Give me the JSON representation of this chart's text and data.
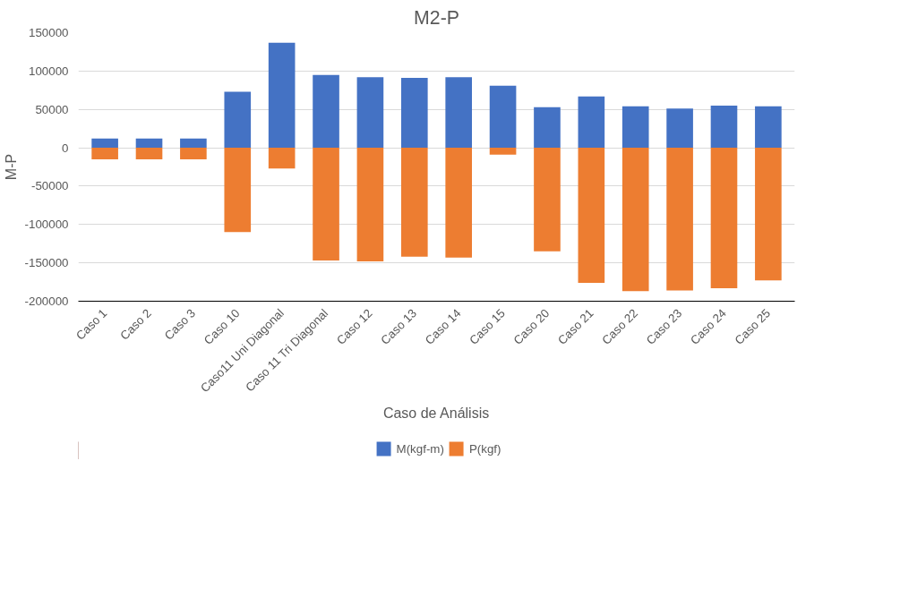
{
  "chart_data": {
    "type": "bar",
    "title": "M2-P",
    "xlabel": "Caso de Análisis",
    "ylabel": "M-P",
    "categories": [
      "Caso 1",
      "Caso 2",
      "Caso 3",
      "Caso 10",
      "Caso11 Uni Diagonal",
      "Caso 11 Tri Diagonal",
      "Caso 12",
      "Caso 13",
      "Caso 14",
      "Caso 15",
      "Caso 20",
      "Caso 21",
      "Caso 22",
      "Caso 23",
      "Caso 24",
      "Caso 25"
    ],
    "series": [
      {
        "name": "M(kgf-m)",
        "color": "#4472c4",
        "values": [
          12000,
          12000,
          12000,
          73000,
          137000,
          95000,
          92000,
          91000,
          92000,
          81000,
          53000,
          67000,
          54000,
          51000,
          55000,
          54000
        ]
      },
      {
        "name": "P(kgf)",
        "color": "#ed7d31",
        "values": [
          -15000,
          -15000,
          -15000,
          -110000,
          -27000,
          -147000,
          -148000,
          -142000,
          -143000,
          -9000,
          -135000,
          -176000,
          -187000,
          -186000,
          -183000,
          -173000
        ]
      }
    ],
    "stacked": true,
    "ylim": [
      -200000,
      150000
    ],
    "yticks": [
      -200000,
      -150000,
      -100000,
      -50000,
      0,
      50000,
      100000,
      150000
    ],
    "grid": "y",
    "legend": "bottom"
  }
}
